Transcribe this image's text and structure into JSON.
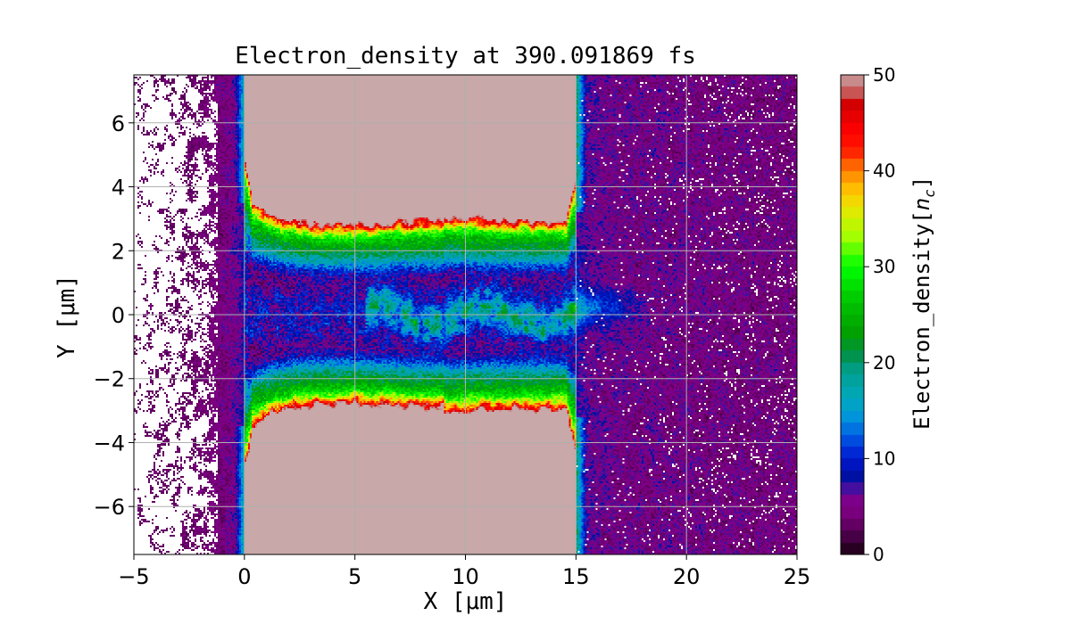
{
  "chart_data": {
    "type": "heatmap",
    "title": "Electron_density at 390.091869 fs",
    "xlabel": "X [μm]",
    "ylabel": "Y [μm]",
    "xlim": [
      -5,
      25
    ],
    "ylim": [
      -7.5,
      7.5
    ],
    "xticks": [
      -5,
      0,
      5,
      10,
      15,
      20,
      25
    ],
    "yticks": [
      -6,
      -4,
      -2,
      0,
      2,
      4,
      6
    ],
    "xtick_labels": [
      "−5",
      "0",
      "5",
      "10",
      "15",
      "20",
      "25"
    ],
    "ytick_labels": [
      "−6",
      "−4",
      "−2",
      "0",
      "2",
      "4",
      "6"
    ],
    "grid": true,
    "colorbar": {
      "label": "Electron_density[n_c]",
      "label_text": "Electron_density[",
      "label_var": "n",
      "label_sub": "c",
      "label_end": "]",
      "range": [
        0,
        50
      ],
      "ticks": [
        0,
        10,
        20,
        30,
        40,
        50
      ],
      "tick_labels": [
        "0",
        "10",
        "20",
        "30",
        "40",
        "50"
      ],
      "colormap_stops": [
        [
          0,
          "#1a0010"
        ],
        [
          2,
          "#4a004a"
        ],
        [
          4,
          "#780078"
        ],
        [
          6,
          "#7e0090"
        ],
        [
          7,
          "#3a10a0"
        ],
        [
          8,
          "#0010a0"
        ],
        [
          10,
          "#0018d0"
        ],
        [
          12,
          "#0050e0"
        ],
        [
          14,
          "#0090e0"
        ],
        [
          16,
          "#00a8c0"
        ],
        [
          19,
          "#00a090"
        ],
        [
          21,
          "#009040"
        ],
        [
          23,
          "#00a000"
        ],
        [
          26,
          "#00c000"
        ],
        [
          30,
          "#00ff00"
        ],
        [
          33,
          "#a0ff00"
        ],
        [
          36,
          "#e8e800"
        ],
        [
          38,
          "#ffc000"
        ],
        [
          40,
          "#ff8000"
        ],
        [
          42,
          "#ff2000"
        ],
        [
          44,
          "#ff0000"
        ],
        [
          47,
          "#d00000"
        ],
        [
          48,
          "#c85050"
        ],
        [
          50,
          "#c8a8a8"
        ]
      ]
    },
    "features": {
      "target_x_range": [
        0,
        15
      ],
      "saturated_value": 50,
      "channel_filament_x_range": [
        6,
        18
      ]
    }
  }
}
